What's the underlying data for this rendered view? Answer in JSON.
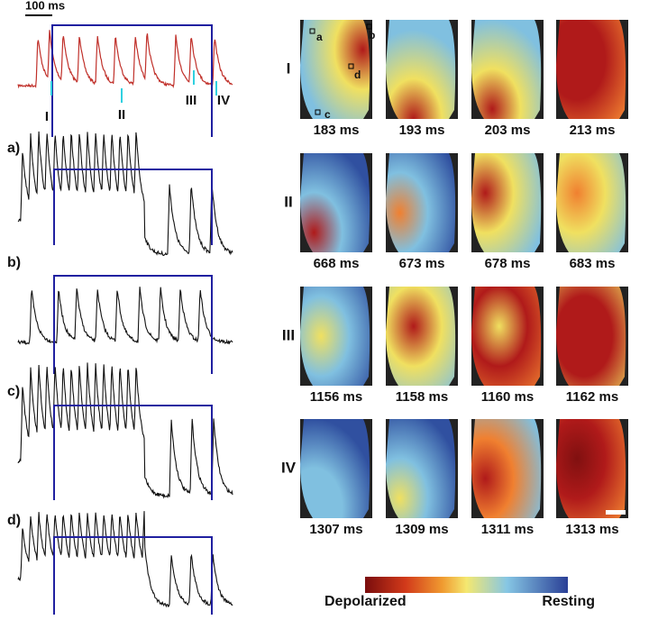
{
  "trace": {
    "scale_bar": "100 ms",
    "phases": [
      "I",
      "II",
      "III",
      "IV"
    ]
  },
  "channels": [
    "a)",
    "b)",
    "c)",
    "d)"
  ],
  "maps": {
    "sites": [
      "a",
      "b",
      "c",
      "d"
    ],
    "rows": [
      {
        "label": "I",
        "times": [
          "183 ms",
          "193 ms",
          "203 ms",
          "213 ms"
        ]
      },
      {
        "label": "II",
        "times": [
          "668 ms",
          "673 ms",
          "678 ms",
          "683 ms"
        ]
      },
      {
        "label": "III",
        "times": [
          "1156 ms",
          "1158 ms",
          "1160 ms",
          "1162 ms"
        ]
      },
      {
        "label": "IV",
        "times": [
          "1307 ms",
          "1309 ms",
          "1311 ms",
          "1313 ms"
        ]
      }
    ]
  },
  "colorbar": {
    "low": "Depolarized",
    "high": "Resting"
  }
}
